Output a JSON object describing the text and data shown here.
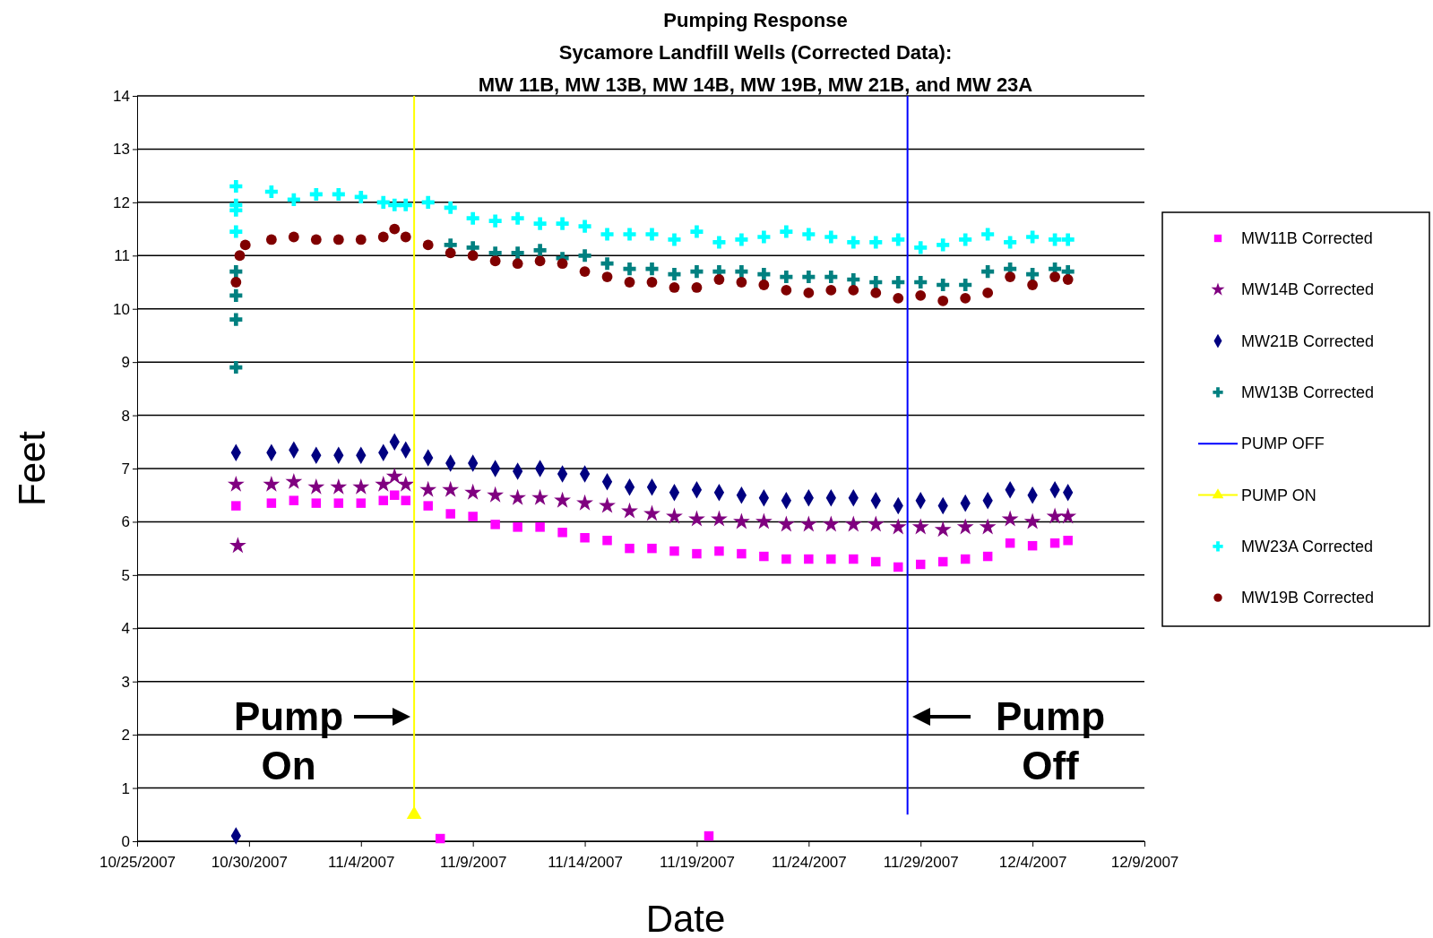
{
  "chart_data": {
    "type": "scatter",
    "title": "Pumping Response",
    "subtitle": "Sycamore Landfill Wells (Corrected Data):\nMW 11B, MW 13B, MW 14B, MW 19B, MW 21B, and MW 23A",
    "xlabel": "Date",
    "ylabel": "Feet",
    "xlim": [
      "2007-10-25",
      "2007-12-09"
    ],
    "xticks": [
      {
        "value": "2007-10-25",
        "label": "10/25/2007"
      },
      {
        "value": "2007-10-30",
        "label": "10/30/2007"
      },
      {
        "value": "2007-11-04",
        "label": "11/4/2007"
      },
      {
        "value": "2007-11-09",
        "label": "11/9/2007"
      },
      {
        "value": "2007-11-14",
        "label": "11/14/2007"
      },
      {
        "value": "2007-11-19",
        "label": "11/19/2007"
      },
      {
        "value": "2007-11-24",
        "label": "11/24/2007"
      },
      {
        "value": "2007-11-29",
        "label": "11/29/2007"
      },
      {
        "value": "2007-12-04",
        "label": "12/4/2007"
      },
      {
        "value": "2007-12-09",
        "label": "12/9/2007"
      }
    ],
    "ylim": [
      0,
      14
    ],
    "yticks": [
      0,
      1,
      2,
      3,
      4,
      5,
      6,
      7,
      8,
      9,
      10,
      11,
      12,
      13,
      14
    ],
    "grid": "y",
    "legend": "right",
    "series": [
      {
        "name": "MW11B Corrected",
        "color": "#ff00ff",
        "marker": "square",
        "x": [
          "2007-10-29T10:00",
          "2007-10-31",
          "2007-11-01",
          "2007-11-02",
          "2007-11-03",
          "2007-11-04",
          "2007-11-05",
          "2007-11-05T12:00",
          "2007-11-06",
          "2007-11-07",
          "2007-11-08",
          "2007-11-09",
          "2007-11-10",
          "2007-11-11",
          "2007-11-12",
          "2007-11-13",
          "2007-11-14",
          "2007-11-15",
          "2007-11-16",
          "2007-11-17",
          "2007-11-18",
          "2007-11-19",
          "2007-11-20",
          "2007-11-21",
          "2007-11-22",
          "2007-11-23",
          "2007-11-24",
          "2007-11-25",
          "2007-11-26",
          "2007-11-27",
          "2007-11-28",
          "2007-11-29",
          "2007-11-30",
          "2007-12-01",
          "2007-12-02",
          "2007-12-03",
          "2007-12-04",
          "2007-12-05",
          "2007-12-05T14:00",
          "2007-11-07T13:00",
          "2007-11-19T13:00"
        ],
        "values": [
          6.3,
          6.35,
          6.4,
          6.35,
          6.35,
          6.35,
          6.4,
          6.5,
          6.4,
          6.3,
          6.15,
          6.1,
          5.95,
          5.9,
          5.9,
          5.8,
          5.7,
          5.65,
          5.5,
          5.5,
          5.45,
          5.4,
          5.45,
          5.4,
          5.35,
          5.3,
          5.3,
          5.3,
          5.3,
          5.25,
          5.15,
          5.2,
          5.25,
          5.3,
          5.35,
          5.6,
          5.55,
          5.6,
          5.65,
          0.05,
          0.1
        ]
      },
      {
        "name": "MW14B Corrected",
        "color": "#800080",
        "marker": "star",
        "x": [
          "2007-10-29T10:00",
          "2007-10-31",
          "2007-11-01",
          "2007-11-02",
          "2007-11-03",
          "2007-11-04",
          "2007-11-05",
          "2007-11-05T12:00",
          "2007-11-06",
          "2007-11-07",
          "2007-11-08",
          "2007-11-09",
          "2007-11-10",
          "2007-11-11",
          "2007-11-12",
          "2007-11-13",
          "2007-11-14",
          "2007-11-15",
          "2007-11-16",
          "2007-11-17",
          "2007-11-18",
          "2007-11-19",
          "2007-11-20",
          "2007-11-21",
          "2007-11-22",
          "2007-11-23",
          "2007-11-24",
          "2007-11-25",
          "2007-11-26",
          "2007-11-27",
          "2007-11-28",
          "2007-11-29",
          "2007-11-30",
          "2007-12-01",
          "2007-12-02",
          "2007-12-03",
          "2007-12-04",
          "2007-12-05",
          "2007-12-05T14:00",
          "2007-10-29T12:00"
        ],
        "values": [
          6.7,
          6.7,
          6.75,
          6.65,
          6.65,
          6.65,
          6.7,
          6.85,
          6.7,
          6.6,
          6.6,
          6.55,
          6.5,
          6.45,
          6.45,
          6.4,
          6.35,
          6.3,
          6.2,
          6.15,
          6.1,
          6.05,
          6.05,
          6.0,
          6.0,
          5.95,
          5.95,
          5.95,
          5.95,
          5.95,
          5.9,
          5.9,
          5.85,
          5.9,
          5.9,
          6.05,
          6.0,
          6.1,
          6.1,
          5.55
        ]
      },
      {
        "name": "MW21B Corrected",
        "color": "#000080",
        "marker": "diamond",
        "x": [
          "2007-10-29T10:00",
          "2007-10-31",
          "2007-11-01",
          "2007-11-02",
          "2007-11-03",
          "2007-11-04",
          "2007-11-05",
          "2007-11-05T12:00",
          "2007-11-06",
          "2007-11-07",
          "2007-11-08",
          "2007-11-09",
          "2007-11-10",
          "2007-11-11",
          "2007-11-12",
          "2007-11-13",
          "2007-11-14",
          "2007-11-15",
          "2007-11-16",
          "2007-11-17",
          "2007-11-18",
          "2007-11-19",
          "2007-11-20",
          "2007-11-21",
          "2007-11-22",
          "2007-11-23",
          "2007-11-24",
          "2007-11-25",
          "2007-11-26",
          "2007-11-27",
          "2007-11-28",
          "2007-11-29",
          "2007-11-30",
          "2007-12-01",
          "2007-12-02",
          "2007-12-03",
          "2007-12-04",
          "2007-12-05",
          "2007-12-05T14:00",
          "2007-10-29T10:00"
        ],
        "values": [
          7.3,
          7.3,
          7.35,
          7.25,
          7.25,
          7.25,
          7.3,
          7.5,
          7.35,
          7.2,
          7.1,
          7.1,
          7.0,
          6.95,
          7.0,
          6.9,
          6.9,
          6.75,
          6.65,
          6.65,
          6.55,
          6.6,
          6.55,
          6.5,
          6.45,
          6.4,
          6.45,
          6.45,
          6.45,
          6.4,
          6.3,
          6.4,
          6.3,
          6.35,
          6.4,
          6.6,
          6.5,
          6.6,
          6.55,
          0.1
        ]
      },
      {
        "name": "MW13B Corrected",
        "color": "#008080",
        "marker": "cross",
        "x": [
          "2007-10-29T10:00",
          "2007-10-31",
          "2007-11-01",
          "2007-11-02",
          "2007-11-03",
          "2007-11-04",
          "2007-11-05",
          "2007-11-05T12:00",
          "2007-11-06",
          "2007-11-07",
          "2007-11-08",
          "2007-11-09",
          "2007-11-10",
          "2007-11-11",
          "2007-11-12",
          "2007-11-13",
          "2007-11-14",
          "2007-11-15",
          "2007-11-16",
          "2007-11-17",
          "2007-11-18",
          "2007-11-19",
          "2007-11-20",
          "2007-11-21",
          "2007-11-22",
          "2007-11-23",
          "2007-11-24",
          "2007-11-25",
          "2007-11-26",
          "2007-11-27",
          "2007-11-28",
          "2007-11-29",
          "2007-11-30",
          "2007-12-01",
          "2007-12-02",
          "2007-12-03",
          "2007-12-04",
          "2007-12-05",
          "2007-12-05T14:00",
          "2007-10-29T10:00",
          "2007-10-29T10:00",
          "2007-10-29T10:00"
        ],
        "values": [
          10.7,
          null,
          null,
          null,
          null,
          null,
          null,
          null,
          null,
          null,
          11.2,
          11.15,
          11.05,
          11.05,
          11.1,
          10.95,
          11.0,
          10.85,
          10.75,
          10.75,
          10.65,
          10.7,
          10.7,
          10.7,
          10.65,
          10.6,
          10.6,
          10.6,
          10.55,
          10.5,
          10.5,
          10.5,
          10.45,
          10.45,
          10.7,
          10.75,
          10.65,
          10.75,
          10.7,
          10.25,
          9.8,
          8.9
        ]
      },
      {
        "name": "PUMP OFF",
        "type": "line",
        "color": "#0000ff",
        "marker": "none",
        "x": [
          "2007-11-28T10:00",
          "2007-11-28T10:00"
        ],
        "values": [
          0.5,
          14
        ]
      },
      {
        "name": "PUMP ON",
        "type": "line",
        "color": "#ffff00",
        "marker": "triangle",
        "x": [
          "2007-11-06T09:00",
          "2007-11-06T09:00"
        ],
        "values": [
          0.5,
          14
        ]
      },
      {
        "name": "MW23A Corrected",
        "color": "#00ffff",
        "marker": "cross",
        "x": [
          "2007-10-29T10:00",
          "2007-10-31",
          "2007-11-01",
          "2007-11-02",
          "2007-11-03",
          "2007-11-04",
          "2007-11-05",
          "2007-11-05T12:00",
          "2007-11-06",
          "2007-11-07",
          "2007-11-08",
          "2007-11-09",
          "2007-11-10",
          "2007-11-11",
          "2007-11-12",
          "2007-11-13",
          "2007-11-14",
          "2007-11-15",
          "2007-11-16",
          "2007-11-17",
          "2007-11-18",
          "2007-11-19",
          "2007-11-20",
          "2007-11-21",
          "2007-11-22",
          "2007-11-23",
          "2007-11-24",
          "2007-11-25",
          "2007-11-26",
          "2007-11-27",
          "2007-11-28",
          "2007-11-29",
          "2007-11-30",
          "2007-12-01",
          "2007-12-02",
          "2007-12-03",
          "2007-12-04",
          "2007-12-05",
          "2007-12-05T14:00",
          "2007-10-29T10:00",
          "2007-10-29T10:00",
          "2007-10-29T10:00"
        ],
        "values": [
          12.3,
          12.2,
          12.05,
          12.15,
          12.15,
          12.1,
          12.0,
          11.95,
          11.95,
          12.0,
          11.9,
          11.7,
          11.65,
          11.7,
          11.6,
          11.6,
          11.55,
          11.4,
          11.4,
          11.4,
          11.3,
          11.45,
          11.25,
          11.3,
          11.35,
          11.45,
          11.4,
          11.35,
          11.25,
          11.25,
          11.3,
          11.15,
          11.2,
          11.3,
          11.4,
          11.25,
          11.35,
          11.3,
          11.3,
          11.95,
          11.85,
          11.45
        ]
      },
      {
        "name": "MW19B Corrected",
        "color": "#800000",
        "marker": "circle",
        "x": [
          "2007-10-29T10:00",
          "2007-10-31",
          "2007-11-01",
          "2007-11-02",
          "2007-11-03",
          "2007-11-04",
          "2007-11-05",
          "2007-11-05T12:00",
          "2007-11-06",
          "2007-11-07",
          "2007-11-08",
          "2007-11-09",
          "2007-11-10",
          "2007-11-11",
          "2007-11-12",
          "2007-11-13",
          "2007-11-14",
          "2007-11-15",
          "2007-11-16",
          "2007-11-17",
          "2007-11-18",
          "2007-11-19",
          "2007-11-20",
          "2007-11-21",
          "2007-11-22",
          "2007-11-23",
          "2007-11-24",
          "2007-11-25",
          "2007-11-26",
          "2007-11-27",
          "2007-11-28",
          "2007-11-29",
          "2007-11-30",
          "2007-12-01",
          "2007-12-02",
          "2007-12-03",
          "2007-12-04",
          "2007-12-05",
          "2007-12-05T14:00",
          "2007-10-29T14:00",
          "2007-10-29T20:00"
        ],
        "values": [
          10.5,
          11.3,
          11.35,
          11.3,
          11.3,
          11.3,
          11.35,
          11.5,
          11.35,
          11.2,
          11.05,
          11.0,
          10.9,
          10.85,
          10.9,
          10.85,
          10.7,
          10.6,
          10.5,
          10.5,
          10.4,
          10.4,
          10.55,
          10.5,
          10.45,
          10.35,
          10.3,
          10.35,
          10.35,
          10.3,
          10.2,
          10.25,
          10.15,
          10.2,
          10.3,
          10.6,
          10.45,
          10.6,
          10.55,
          11.0,
          11.2
        ]
      }
    ],
    "annotations": [
      "Pump On",
      "Pump Off"
    ]
  }
}
